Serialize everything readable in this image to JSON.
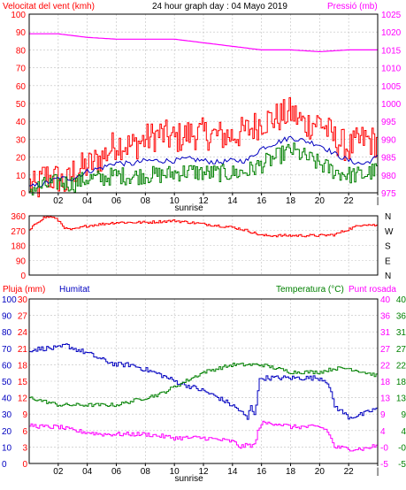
{
  "colors": {
    "grid": "#c0c0c0",
    "frame": "#000000",
    "wind_red": "#ff0000",
    "pressure_magenta": "#ff00ff",
    "humidity_blue": "#0000c0",
    "temp_green": "#008000",
    "rain_red": "#ff0000"
  },
  "chart_data": [
    {
      "type": "line",
      "title": "24 hour graph day : 04 Mayo 2019",
      "left_axis_label": "Velocitat del vent (kmh)",
      "right_axis_label": "Pressió (mb)",
      "x_ticks": [
        "02",
        "04",
        "06",
        "08",
        "10",
        "12",
        "14",
        "16",
        "18",
        "20",
        "22",
        "|"
      ],
      "x_note": "sunrise",
      "y_left_ticks": [
        "0",
        "10",
        "20",
        "30",
        "40",
        "50",
        "60",
        "70",
        "80",
        "90",
        "100"
      ],
      "y_right_ticks": [
        "975",
        "980",
        "985",
        "990",
        "995",
        "1000",
        "1005",
        "1010",
        "1015",
        "1020",
        "1025"
      ],
      "ylim_left": [
        0,
        100
      ],
      "ylim_right": [
        975,
        1025
      ],
      "hour_range": [
        0,
        24
      ],
      "series": [
        {
          "color": "wind_red",
          "axis": "left",
          "anchors": [
            [
              0,
              5
            ],
            [
              0.5,
              2
            ],
            [
              1,
              10
            ],
            [
              1.5,
              8
            ],
            [
              2,
              8
            ],
            [
              2.5,
              4
            ],
            [
              3,
              12
            ],
            [
              4,
              15
            ],
            [
              5,
              20
            ],
            [
              6,
              28
            ],
            [
              7,
              26
            ],
            [
              8,
              30
            ],
            [
              9,
              33
            ],
            [
              10,
              30
            ],
            [
              11,
              33
            ],
            [
              12,
              33
            ],
            [
              13,
              32
            ],
            [
              14,
              32
            ],
            [
              15,
              35
            ],
            [
              16,
              40
            ],
            [
              17,
              42
            ],
            [
              18,
              45
            ],
            [
              19,
              38
            ],
            [
              20,
              40
            ],
            [
              21,
              30
            ],
            [
              22,
              25
            ],
            [
              23,
              30
            ],
            [
              24,
              28
            ]
          ],
          "noise": 9
        },
        {
          "color": "humidity_blue",
          "axis": "left",
          "anchors": [
            [
              0,
              3
            ],
            [
              1,
              5
            ],
            [
              2,
              8
            ],
            [
              3,
              8
            ],
            [
              4,
              12
            ],
            [
              5,
              14
            ],
            [
              6,
              17
            ],
            [
              7,
              16
            ],
            [
              8,
              18
            ],
            [
              9,
              18
            ],
            [
              10,
              18
            ],
            [
              11,
              19
            ],
            [
              12,
              18
            ],
            [
              13,
              17
            ],
            [
              14,
              18
            ],
            [
              15,
              18
            ],
            [
              16,
              25
            ],
            [
              17,
              28
            ],
            [
              18,
              31
            ],
            [
              19,
              29
            ],
            [
              20,
              27
            ],
            [
              21,
              22
            ],
            [
              22,
              18
            ],
            [
              23,
              16
            ],
            [
              24,
              20
            ]
          ],
          "noise": 1.5
        },
        {
          "color": "temp_green",
          "axis": "left",
          "anchors": [
            [
              0,
              2
            ],
            [
              1,
              4
            ],
            [
              2,
              6
            ],
            [
              3,
              5
            ],
            [
              4,
              8
            ],
            [
              5,
              8
            ],
            [
              6,
              10
            ],
            [
              7,
              9
            ],
            [
              8,
              10
            ],
            [
              9,
              10
            ],
            [
              10,
              11
            ],
            [
              11,
              12
            ],
            [
              12,
              11
            ],
            [
              13,
              11
            ],
            [
              14,
              11
            ],
            [
              15,
              12
            ],
            [
              16,
              16
            ],
            [
              17,
              20
            ],
            [
              18,
              24
            ],
            [
              19,
              20
            ],
            [
              20,
              16
            ],
            [
              21,
              12
            ],
            [
              22,
              10
            ],
            [
              23,
              10
            ],
            [
              24,
              13
            ]
          ],
          "noise": 5
        },
        {
          "color": "pressure_magenta",
          "axis": "right",
          "anchors": [
            [
              0,
              1019.5
            ],
            [
              2,
              1019.5
            ],
            [
              4,
              1018.5
            ],
            [
              6,
              1018
            ],
            [
              8,
              1018
            ],
            [
              10,
              1018
            ],
            [
              12,
              1017
            ],
            [
              14,
              1016
            ],
            [
              16,
              1015
            ],
            [
              18,
              1015
            ],
            [
              20,
              1014.5
            ],
            [
              22,
              1015
            ],
            [
              24,
              1015
            ]
          ],
          "noise": 0
        }
      ]
    },
    {
      "type": "line",
      "title": "",
      "y_left_ticks": [
        "0",
        "90",
        "180",
        "270",
        "360"
      ],
      "y_right_ticks": [
        "N",
        "E",
        "S",
        "W",
        "N"
      ],
      "ylim": [
        0,
        360
      ],
      "series": [
        {
          "color": "wind_red",
          "axis": "left",
          "anchors": [
            [
              0,
              270
            ],
            [
              0.5,
              320
            ],
            [
              1,
              350
            ],
            [
              1.5,
              355
            ],
            [
              2,
              330
            ],
            [
              2.5,
              280
            ],
            [
              3,
              275
            ],
            [
              4,
              300
            ],
            [
              6,
              320
            ],
            [
              8,
              320
            ],
            [
              10,
              330
            ],
            [
              12,
              310
            ],
            [
              14,
              290
            ],
            [
              15,
              270
            ],
            [
              16,
              240
            ],
            [
              18,
              240
            ],
            [
              20,
              240
            ],
            [
              21,
              245
            ],
            [
              22,
              280
            ],
            [
              23,
              310
            ],
            [
              24,
              300
            ]
          ],
          "noise": 8
        }
      ]
    },
    {
      "type": "line",
      "left_axis_label_1": "Pluja (mm)",
      "left_axis_label_2": "Humitat",
      "right_axis_label_1": "Temperatura (°C)",
      "right_axis_label_2": "Punt rosada",
      "x_ticks": [
        "02",
        "04",
        "06",
        "08",
        "10",
        "12",
        "14",
        "16",
        "18",
        "20",
        "22",
        "|"
      ],
      "x_note": "sunrise",
      "y_left_outer_ticks": [
        "0",
        "10",
        "20",
        "30",
        "40",
        "50",
        "60",
        "70",
        "80",
        "90",
        "100"
      ],
      "y_left_inner_ticks": [
        "0",
        "3",
        "6",
        "9",
        "12",
        "15",
        "18",
        "21",
        "24",
        "27",
        "30"
      ],
      "y_right_inner_ticks": [
        "-5",
        "-0",
        "4",
        "9",
        "13",
        "18",
        "22",
        "27",
        "31",
        "36",
        "40"
      ],
      "y_right_outer_ticks": [
        "-5",
        "-0",
        "4",
        "9",
        "13",
        "18",
        "22",
        "27",
        "31",
        "36",
        "40"
      ],
      "ylim_humidity": [
        0,
        100
      ],
      "ylim_temp": [
        -5,
        40
      ],
      "series": [
        {
          "name": "Humitat",
          "color": "humidity_blue",
          "axis": "humidity",
          "anchors": [
            [
              0,
              69
            ],
            [
              1,
              70
            ],
            [
              2,
              70
            ],
            [
              2.5,
              72
            ],
            [
              3,
              70
            ],
            [
              4,
              67
            ],
            [
              5,
              63
            ],
            [
              6,
              60
            ],
            [
              7,
              60
            ],
            [
              8,
              57
            ],
            [
              9,
              54
            ],
            [
              10,
              50
            ],
            [
              11,
              47
            ],
            [
              12,
              44
            ],
            [
              13,
              40
            ],
            [
              14,
              35
            ],
            [
              14.5,
              32
            ],
            [
              15,
              27
            ],
            [
              15.2,
              35
            ],
            [
              15.5,
              30
            ],
            [
              15.8,
              50
            ],
            [
              16,
              52
            ],
            [
              17,
              52
            ],
            [
              18,
              52
            ],
            [
              19,
              52
            ],
            [
              20,
              52
            ],
            [
              20.5,
              50
            ],
            [
              21,
              35
            ],
            [
              22,
              28
            ],
            [
              23,
              30
            ],
            [
              24,
              34
            ]
          ],
          "noise": 1.5
        },
        {
          "name": "Temperatura",
          "color": "temp_green",
          "axis": "temp",
          "anchors": [
            [
              0,
              13
            ],
            [
              1,
              12
            ],
            [
              2,
              11
            ],
            [
              3,
              11
            ],
            [
              4,
              11
            ],
            [
              5,
              11
            ],
            [
              6,
              11
            ],
            [
              7,
              12
            ],
            [
              8,
              13
            ],
            [
              9,
              14
            ],
            [
              10,
              16
            ],
            [
              11,
              18
            ],
            [
              12,
              20
            ],
            [
              13,
              21
            ],
            [
              14,
              22
            ],
            [
              15,
              22
            ],
            [
              16,
              22
            ],
            [
              17,
              21
            ],
            [
              18,
              20
            ],
            [
              19,
              20
            ],
            [
              20,
              20
            ],
            [
              21,
              21
            ],
            [
              22,
              21
            ],
            [
              23,
              20
            ],
            [
              24,
              19
            ]
          ],
          "noise": 0.5
        },
        {
          "name": "Punt rosada",
          "color": "pressure_magenta",
          "axis": "temp",
          "anchors": [
            [
              0,
              5.5
            ],
            [
              1,
              5
            ],
            [
              2,
              5
            ],
            [
              3,
              4
            ],
            [
              4,
              3.5
            ],
            [
              5,
              3
            ],
            [
              6,
              3
            ],
            [
              7,
              3
            ],
            [
              8,
              3
            ],
            [
              9,
              2.5
            ],
            [
              10,
              2
            ],
            [
              11,
              2
            ],
            [
              12,
              2
            ],
            [
              13,
              1.5
            ],
            [
              14,
              1
            ],
            [
              14.5,
              -0.5
            ],
            [
              15,
              0
            ],
            [
              15.5,
              0
            ],
            [
              15.8,
              5
            ],
            [
              16,
              6
            ],
            [
              17,
              6
            ],
            [
              18,
              5
            ],
            [
              19,
              5
            ],
            [
              20,
              5
            ],
            [
              20.5,
              4
            ],
            [
              21,
              -0.5
            ],
            [
              22,
              -1
            ],
            [
              23,
              -1
            ],
            [
              24,
              0
            ]
          ],
          "noise": 0.6
        },
        {
          "name": "Pluja",
          "color": "rain_red",
          "axis": "humidity",
          "anchors": [
            [
              0,
              0
            ],
            [
              24,
              0
            ]
          ],
          "noise": 0
        }
      ]
    }
  ]
}
